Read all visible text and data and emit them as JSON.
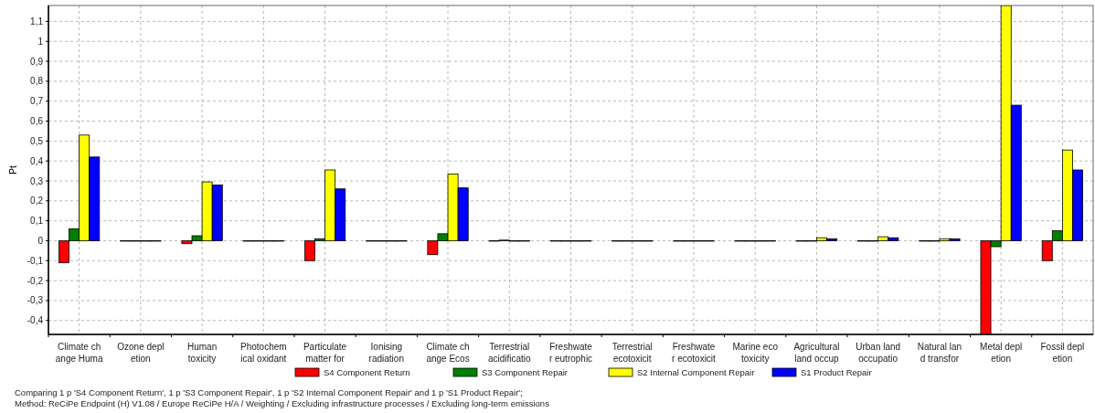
{
  "chart_data": {
    "type": "bar",
    "ylabel": "Pt",
    "categories": [
      "Climate ch\nange Huma",
      "Ozone depl\netion",
      "Human\ntoxicity",
      "Photochem\nical oxidant",
      "Particulate\nmatter for",
      "Ionising\nradiation",
      "Climate ch\nange Ecos",
      "Terrestrial\nacidificatio",
      "Freshwate\nr eutrophic",
      "Terrestrial\necotoxicit",
      "Freshwate\nr ecotoxicit",
      "Marine eco\ntoxicity",
      "Agricultural\nland occup",
      "Urban land\noccupatio",
      "Natural lan\nd transfor",
      "Metal depl\netion",
      "Fossil depl\netion"
    ],
    "series": [
      {
        "name": "S4 Component Return",
        "color": "#ff0000",
        "values": [
          -0.11,
          0,
          -0.015,
          0,
          -0.1,
          0,
          -0.07,
          0,
          0,
          0,
          0,
          0,
          0,
          0,
          0,
          -0.47,
          -0.1
        ]
      },
      {
        "name": "S3 Component Repair",
        "color": "#007f00",
        "values": [
          0.06,
          0,
          0.025,
          0,
          0.01,
          0,
          0.035,
          0.003,
          0,
          0,
          0,
          0,
          0,
          0,
          0,
          -0.03,
          0.05
        ]
      },
      {
        "name": "S2 Internal Component Repair",
        "color": "#ffff00",
        "values": [
          0.53,
          0,
          0.295,
          0,
          0.355,
          0,
          0.335,
          0,
          0,
          0,
          0,
          0,
          0.015,
          0.02,
          0.01,
          1.18,
          0.455
        ]
      },
      {
        "name": "S1 Product Repair",
        "color": "#0000ff",
        "values": [
          0.42,
          0,
          0.28,
          0,
          0.26,
          0,
          0.265,
          0,
          0,
          0,
          0,
          0,
          0.01,
          0.015,
          0.01,
          0.68,
          0.355
        ]
      }
    ],
    "ylim": [
      -0.47,
      1.18
    ],
    "yticks": [
      {
        "value": -0.4,
        "label": "-0,4"
      },
      {
        "value": -0.3,
        "label": "-0,3"
      },
      {
        "value": -0.2,
        "label": "-0,2"
      },
      {
        "value": -0.1,
        "label": "-0,1"
      },
      0,
      {
        "value": 0.1,
        "label": "0,1"
      },
      {
        "value": 0.2,
        "label": "0,2"
      },
      {
        "value": 0.3,
        "label": "0,3"
      },
      {
        "value": 0.4,
        "label": "0,4"
      },
      {
        "value": 0.5,
        "label": "0,5"
      },
      {
        "value": 0.6,
        "label": "0,6"
      },
      {
        "value": 0.7,
        "label": "0,7"
      },
      {
        "value": 0.8,
        "label": "0,8"
      },
      {
        "value": 0.9,
        "label": "0,9"
      },
      1,
      {
        "value": 1.1,
        "label": "1,1"
      }
    ],
    "grid": true,
    "legend": "bottom",
    "annotations": [
      "Comparing 1 p 'S4 Component Return', 1 p 'S3 Component Repair', 1 p 'S2 Internal Component Repair' and 1 p 'S1 Product Repair';",
      "Method: ReCiPe Endpoint (H) V1.08 / Europe ReCiPe H/A / Weighting / Excluding infrastructure processes / Excluding long-term emissions"
    ]
  }
}
